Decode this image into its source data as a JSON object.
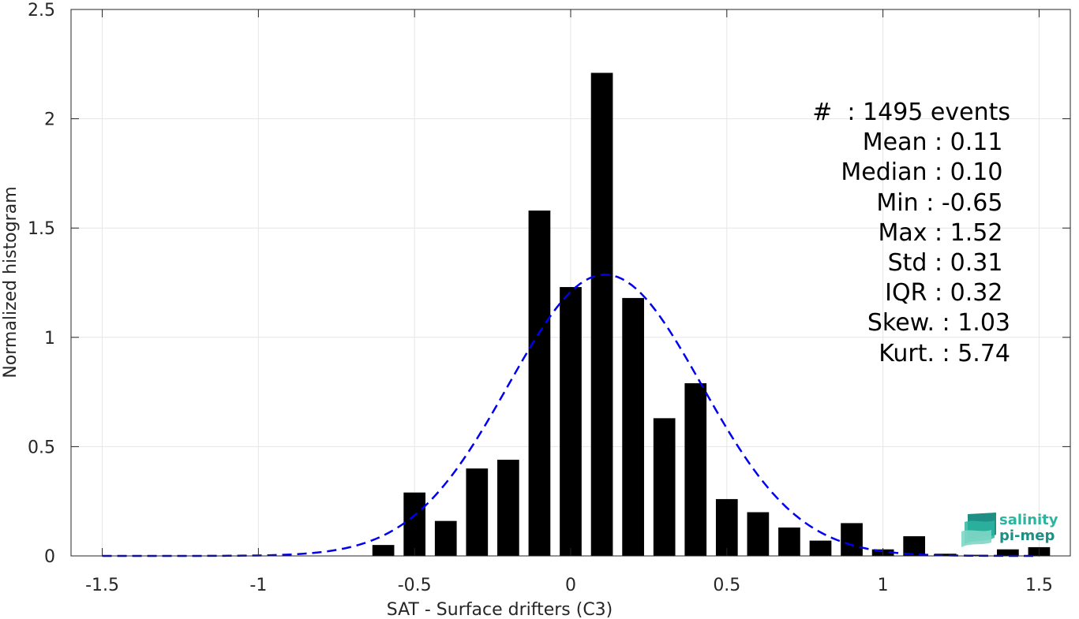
{
  "chart_data": {
    "type": "bar",
    "xlabel": "SAT - Surface drifters (C3)",
    "ylabel": "Normalized histogram",
    "xlim": [
      -1.6,
      1.6
    ],
    "ylim": [
      0,
      2.5
    ],
    "xticks": [
      -1.5,
      -1,
      -0.5,
      0,
      0.5,
      1,
      1.5
    ],
    "xtick_labels": [
      "-1.5",
      "-1",
      "-0.5",
      "0",
      "0.5",
      "1",
      "1.5"
    ],
    "yticks": [
      0,
      0.5,
      1,
      1.5,
      2,
      2.5
    ],
    "ytick_labels": [
      "0",
      "0.5",
      "1",
      "1.5",
      "2",
      "2.5"
    ],
    "grid": true,
    "bar_color": "#000000",
    "bar_width": 0.07,
    "bars": {
      "x": [
        -0.6,
        -0.5,
        -0.4,
        -0.3,
        -0.2,
        -0.1,
        0.0,
        0.1,
        0.2,
        0.3,
        0.4,
        0.5,
        0.6,
        0.7,
        0.8,
        0.9,
        1.0,
        1.1,
        1.2,
        1.3,
        1.4,
        1.5
      ],
      "values": [
        0.05,
        0.29,
        0.16,
        0.4,
        0.44,
        1.58,
        1.23,
        2.21,
        1.18,
        0.63,
        0.79,
        0.26,
        0.2,
        0.13,
        0.07,
        0.15,
        0.03,
        0.09,
        0.01,
        0.005,
        0.03,
        0.04
      ]
    },
    "fit_curve": {
      "style": "dashed",
      "color": "#0000ee",
      "mean": 0.11,
      "std": 0.31,
      "x_range": [
        -1.5,
        1.5
      ]
    }
  },
  "stats": [
    "#  : 1495 events",
    "Mean : 0.11 ",
    "Median : 0.10 ",
    "Min : -0.65 ",
    "Max : 1.52 ",
    "Std : 0.31 ",
    "IQR : 0.32 ",
    "Skew. : 1.03",
    "Kurt. : 5.74"
  ],
  "logo": {
    "line1": "salinity",
    "line2": "pi-mep",
    "icon": "waves-logo-icon",
    "color": "#2bb5a0"
  }
}
